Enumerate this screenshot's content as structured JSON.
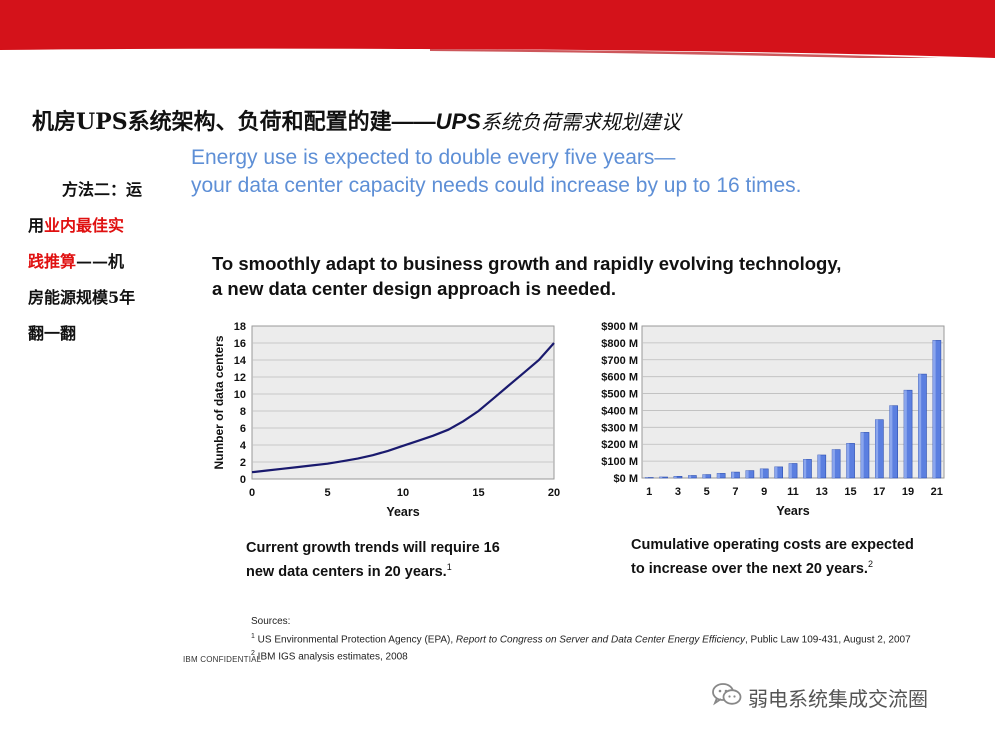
{
  "title": {
    "main": "机房UPS系统架构、负荷和配置的建",
    "dash": "——",
    "sub_en": "UPS",
    "sub_cn": "系统负荷需求规划建议"
  },
  "side_note": {
    "line1": "方法二：运",
    "line2_black": "用",
    "line2_red": "业内最佳实",
    "line3_red": "践推算",
    "line3_black": "——机",
    "line4": "房能源规模5年",
    "line5": "翻一翻"
  },
  "energy": {
    "line1": "Energy use is expected to double every five years—",
    "line2": "your data center capacity needs could increase by up to 16 times."
  },
  "headline": {
    "line1": "To smoothly adapt to business growth and rapidly evolving technology,",
    "line2": "a new data center design approach is needed."
  },
  "chart_data": [
    {
      "type": "line",
      "xlabel": "Years",
      "ylabel": "Number of data centers",
      "xlim": [
        0,
        20
      ],
      "ylim": [
        0,
        18
      ],
      "xticks": [
        "0",
        "5",
        "10",
        "15",
        "20"
      ],
      "yticks": [
        "0",
        "2",
        "4",
        "6",
        "8",
        "10",
        "12",
        "14",
        "16",
        "18"
      ],
      "grid": true,
      "color": "#1a1a6e",
      "x": [
        0,
        1,
        2,
        3,
        4,
        5,
        6,
        7,
        8,
        9,
        10,
        11,
        12,
        13,
        14,
        15,
        16,
        17,
        18,
        19,
        20
      ],
      "y": [
        0.8,
        1.0,
        1.2,
        1.4,
        1.6,
        1.8,
        2.1,
        2.4,
        2.8,
        3.3,
        3.9,
        4.5,
        5.1,
        5.8,
        6.8,
        8.0,
        9.5,
        11.0,
        12.5,
        14.0,
        16.0
      ]
    },
    {
      "type": "bar",
      "xlabel": "Years",
      "ylabel": "",
      "ylim": [
        0,
        900
      ],
      "yticks": [
        "$0 M",
        "$100 M",
        "$200 M",
        "$300 M",
        "$400 M",
        "$500 M",
        "$600 M",
        "$700 M",
        "$800 M",
        "$900 M"
      ],
      "xticks": [
        "1",
        "3",
        "5",
        "7",
        "9",
        "11",
        "13",
        "15",
        "17",
        "19",
        "21"
      ],
      "grid": true,
      "color": "#5b7fe0",
      "categories": [
        "1",
        "2",
        "3",
        "4",
        "5",
        "6",
        "7",
        "8",
        "9",
        "10",
        "11",
        "12",
        "13",
        "14",
        "15",
        "16",
        "17",
        "18",
        "19",
        "20",
        "21"
      ],
      "values": [
        3,
        6,
        10,
        15,
        20,
        27,
        35,
        44,
        54,
        66,
        86,
        110,
        136,
        168,
        205,
        270,
        345,
        428,
        520,
        615,
        815
      ]
    }
  ],
  "captions": {
    "left_line1": "Current growth trends will require 16",
    "left_line2": "new data centers in 20 years.",
    "left_ref": "1",
    "right_line1": "Cumulative operating costs are expected",
    "right_line2": "to increase over the next 20 years.",
    "right_ref": "2"
  },
  "sources": {
    "heading": "Sources:",
    "s1_num": "1",
    "s1_text": " US Environmental Protection Agency (EPA), ",
    "s1_italic": "Report to Congress on Server and Data Center Energy Efficiency",
    "s1_tail": ", Public Law 109-431, August 2, 2007",
    "s2_num": "2",
    "s2_text": " IBM IGS analysis estimates, 2008"
  },
  "confidential": "IBM CONFIDENTIAL",
  "watermark": {
    "icon": "wechat-icon",
    "label": "弱电系统集成交流圈"
  },
  "colors": {
    "banner_red": "#d4121a",
    "accent_blue": "#5e8fd6",
    "bar_blue": "#5b7fe0",
    "line_navy": "#1a1a6e"
  }
}
